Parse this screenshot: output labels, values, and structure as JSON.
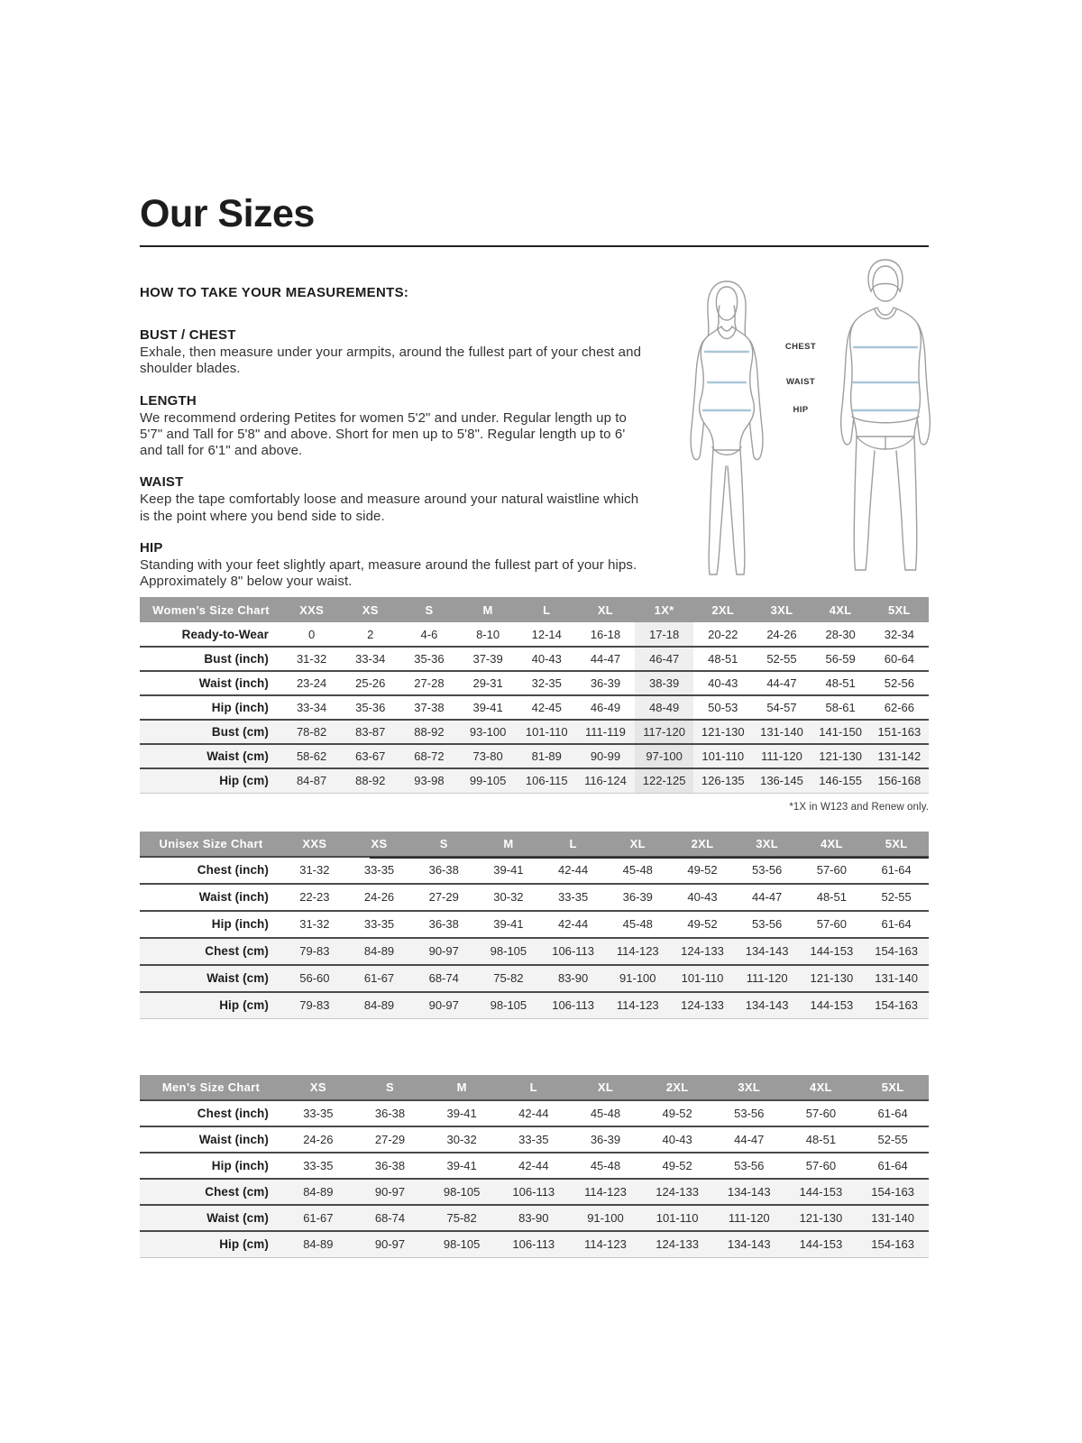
{
  "page": {
    "title": "Our Sizes"
  },
  "measurements": {
    "intro_heading": "HOW TO TAKE YOUR MEASUREMENTS:",
    "sections": [
      {
        "heading": "BUST / CHEST",
        "text": "Exhale, then measure under your armpits, around the fullest part of your chest and shoulder blades."
      },
      {
        "heading": "LENGTH",
        "text": "We recommend ordering Petites for women 5'2\" and under. Regular length up to 5'7\" and Tall for 5'8\" and above. Short for men up to 5'8\". Regular length up to 6' and tall for 6'1\" and above."
      },
      {
        "heading": "WAIST",
        "text": "Keep the tape comfortably loose and measure around your natural waistline which is the point where you bend side to side."
      },
      {
        "heading": "HIP",
        "text": "Standing with your feet slightly apart, measure around the fullest part of your hips. Approximately 8\" below your waist."
      }
    ]
  },
  "figure": {
    "labels": {
      "chest": "CHEST",
      "waist": "WAIST",
      "hip": "HIP"
    }
  },
  "colors": {
    "header_bg": "#9b9b9b",
    "shaded_row": "#f3f3f3",
    "highlight_column": "#efefef",
    "measure_line": "#a9c7d8",
    "figure_outline": "#9e9e9e",
    "row_border": "#4a4a4a"
  },
  "tables": {
    "women": {
      "title": "Women’s Size Chart",
      "columns": [
        "XXS",
        "XS",
        "S",
        "M",
        "L",
        "XL",
        "1X*",
        "2XL",
        "3XL",
        "4XL",
        "5XL"
      ],
      "highlight_column": "1X*",
      "rows": [
        {
          "label": "Ready-to-Wear",
          "shaded": false,
          "values": [
            "0",
            "2",
            "4-6",
            "8-10",
            "12-14",
            "16-18",
            "17-18",
            "20-22",
            "24-26",
            "28-30",
            "32-34"
          ]
        },
        {
          "label": "Bust (inch)",
          "shaded": false,
          "values": [
            "31-32",
            "33-34",
            "35-36",
            "37-39",
            "40-43",
            "44-47",
            "46-47",
            "48-51",
            "52-55",
            "56-59",
            "60-64"
          ]
        },
        {
          "label": "Waist (inch)",
          "shaded": false,
          "values": [
            "23-24",
            "25-26",
            "27-28",
            "29-31",
            "32-35",
            "36-39",
            "38-39",
            "40-43",
            "44-47",
            "48-51",
            "52-56"
          ]
        },
        {
          "label": "Hip (inch)",
          "shaded": false,
          "values": [
            "33-34",
            "35-36",
            "37-38",
            "39-41",
            "42-45",
            "46-49",
            "48-49",
            "50-53",
            "54-57",
            "58-61",
            "62-66"
          ]
        },
        {
          "label": "Bust (cm)",
          "shaded": true,
          "values": [
            "78-82",
            "83-87",
            "88-92",
            "93-100",
            "101-110",
            "111-119",
            "117-120",
            "121-130",
            "131-140",
            "141-150",
            "151-163"
          ]
        },
        {
          "label": "Waist (cm)",
          "shaded": true,
          "values": [
            "58-62",
            "63-67",
            "68-72",
            "73-80",
            "81-89",
            "90-99",
            "97-100",
            "101-110",
            "111-120",
            "121-130",
            "131-142"
          ]
        },
        {
          "label": "Hip (cm)",
          "shaded": true,
          "values": [
            "84-87",
            "88-92",
            "93-98",
            "99-105",
            "106-115",
            "116-124",
            "122-125",
            "126-135",
            "136-145",
            "146-155",
            "156-168"
          ]
        }
      ],
      "footnote": "*1X in W123 and Renew only."
    },
    "unisex": {
      "title": "Unisex Size Chart",
      "columns": [
        "XXS",
        "XS",
        "S",
        "M",
        "L",
        "XL",
        "2XL",
        "3XL",
        "4XL",
        "5XL"
      ],
      "rows": [
        {
          "label": "Chest (inch)",
          "shaded": false,
          "values": [
            "31-32",
            "33-35",
            "36-38",
            "39-41",
            "42-44",
            "45-48",
            "49-52",
            "53-56",
            "57-60",
            "61-64"
          ]
        },
        {
          "label": "Waist (inch)",
          "shaded": false,
          "values": [
            "22-23",
            "24-26",
            "27-29",
            "30-32",
            "33-35",
            "36-39",
            "40-43",
            "44-47",
            "48-51",
            "52-55"
          ]
        },
        {
          "label": "Hip (inch)",
          "shaded": false,
          "values": [
            "31-32",
            "33-35",
            "36-38",
            "39-41",
            "42-44",
            "45-48",
            "49-52",
            "53-56",
            "57-60",
            "61-64"
          ]
        },
        {
          "label": "Chest (cm)",
          "shaded": true,
          "values": [
            "79-83",
            "84-89",
            "90-97",
            "98-105",
            "106-113",
            "114-123",
            "124-133",
            "134-143",
            "144-153",
            "154-163"
          ]
        },
        {
          "label": "Waist (cm)",
          "shaded": true,
          "values": [
            "56-60",
            "61-67",
            "68-74",
            "75-82",
            "83-90",
            "91-100",
            "101-110",
            "111-120",
            "121-130",
            "131-140"
          ]
        },
        {
          "label": "Hip (cm)",
          "shaded": true,
          "values": [
            "79-83",
            "84-89",
            "90-97",
            "98-105",
            "106-113",
            "114-123",
            "124-133",
            "134-143",
            "144-153",
            "154-163"
          ]
        }
      ]
    },
    "men": {
      "title": "Men’s Size Chart",
      "columns": [
        "XS",
        "S",
        "M",
        "L",
        "XL",
        "2XL",
        "3XL",
        "4XL",
        "5XL"
      ],
      "rows": [
        {
          "label": "Chest (inch)",
          "shaded": false,
          "values": [
            "33-35",
            "36-38",
            "39-41",
            "42-44",
            "45-48",
            "49-52",
            "53-56",
            "57-60",
            "61-64"
          ]
        },
        {
          "label": "Waist (inch)",
          "shaded": false,
          "values": [
            "24-26",
            "27-29",
            "30-32",
            "33-35",
            "36-39",
            "40-43",
            "44-47",
            "48-51",
            "52-55"
          ]
        },
        {
          "label": "Hip (inch)",
          "shaded": false,
          "values": [
            "33-35",
            "36-38",
            "39-41",
            "42-44",
            "45-48",
            "49-52",
            "53-56",
            "57-60",
            "61-64"
          ]
        },
        {
          "label": "Chest (cm)",
          "shaded": true,
          "values": [
            "84-89",
            "90-97",
            "98-105",
            "106-113",
            "114-123",
            "124-133",
            "134-143",
            "144-153",
            "154-163"
          ]
        },
        {
          "label": "Waist (cm)",
          "shaded": true,
          "values": [
            "61-67",
            "68-74",
            "75-82",
            "83-90",
            "91-100",
            "101-110",
            "111-120",
            "121-130",
            "131-140"
          ]
        },
        {
          "label": "Hip (cm)",
          "shaded": true,
          "values": [
            "84-89",
            "90-97",
            "98-105",
            "106-113",
            "114-123",
            "124-133",
            "134-143",
            "144-153",
            "154-163"
          ]
        }
      ]
    }
  }
}
